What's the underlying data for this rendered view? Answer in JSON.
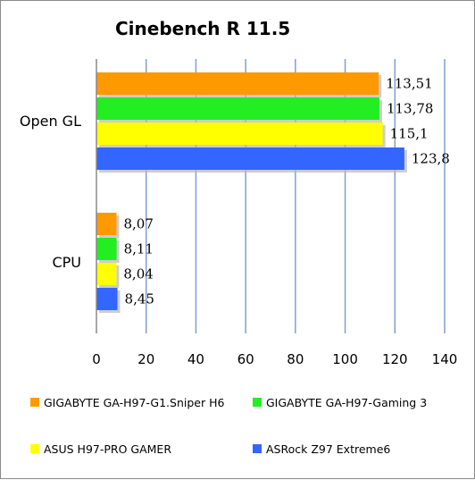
{
  "chart_data": {
    "type": "bar",
    "orientation": "horizontal",
    "title": "Cinebench R 11.5",
    "categories": [
      "Open GL",
      "CPU"
    ],
    "series": [
      {
        "name": "GIGABYTE GA-H97-G1.Sniper H6",
        "color": "#ff9900",
        "values": [
          113.51,
          8.07
        ],
        "labels": [
          "113,51",
          "8,07"
        ]
      },
      {
        "name": "GIGABYTE GA-H97-Gaming 3",
        "color": "#22ee22",
        "values": [
          113.78,
          8.11
        ],
        "labels": [
          "113,78",
          "8,11"
        ]
      },
      {
        "name": "ASUS H97-PRO GAMER",
        "color": "#ffff00",
        "values": [
          115.1,
          8.04
        ],
        "labels": [
          "115,1",
          "8,04"
        ]
      },
      {
        "name": "ASRock Z97 Extreme6",
        "color": "#3366ff",
        "values": [
          123.8,
          8.45
        ],
        "labels": [
          "123,8",
          "8,45"
        ]
      }
    ],
    "xlim": [
      0,
      140
    ],
    "xticks": [
      "0",
      "20",
      "40",
      "60",
      "80",
      "100",
      "120",
      "140"
    ],
    "grid": true,
    "legend_position": "bottom"
  }
}
